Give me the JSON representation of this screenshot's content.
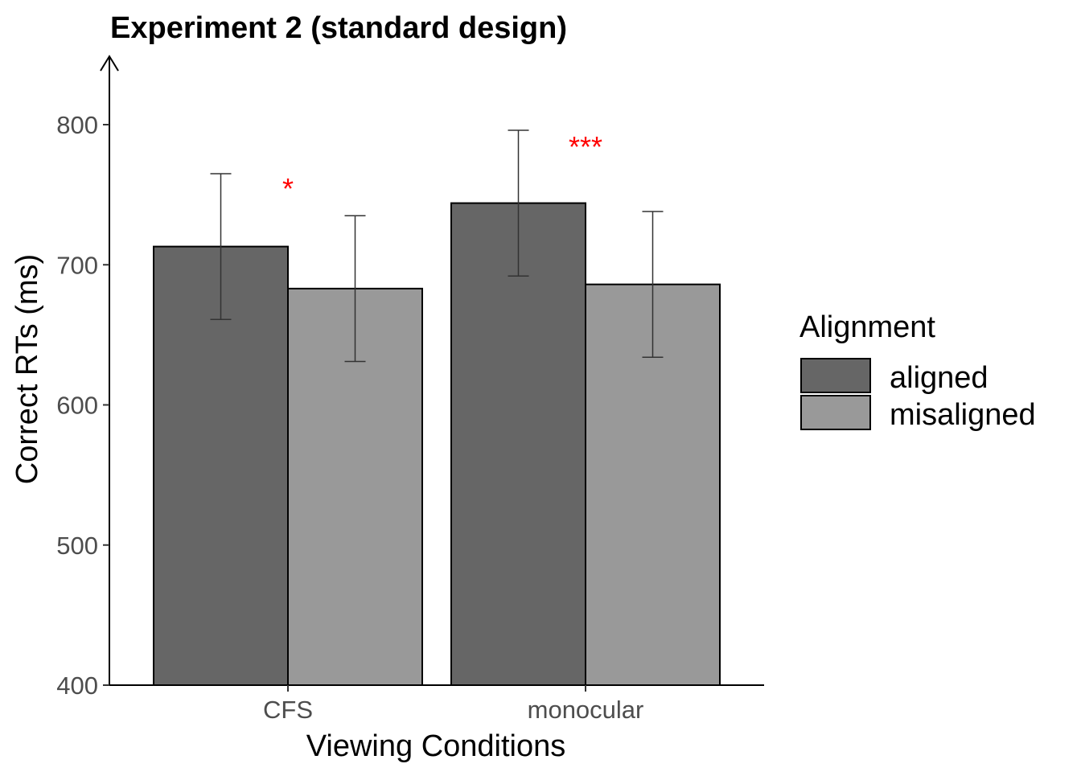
{
  "chart_data": {
    "type": "bar",
    "title": "Experiment 2 (standard design)",
    "xlabel": "Viewing Conditions",
    "ylabel": "Correct RTs (ms)",
    "categories": [
      "CFS",
      "monocular"
    ],
    "ylim": [
      400,
      840
    ],
    "yticks": [
      400,
      500,
      600,
      700,
      800
    ],
    "grid": false,
    "legend": {
      "title": "Alignment",
      "placement": "right"
    },
    "series": [
      {
        "name": "aligned",
        "color": "#666666",
        "values": [
          713,
          744
        ],
        "error_low": [
          661,
          692
        ],
        "error_high": [
          765,
          796
        ]
      },
      {
        "name": "misaligned",
        "color": "#999999",
        "values": [
          683,
          686
        ],
        "error_low": [
          631,
          634
        ],
        "error_high": [
          735,
          738
        ]
      }
    ],
    "annotations": [
      {
        "text": "*",
        "category": "CFS",
        "y": 762,
        "color": "#ff0000"
      },
      {
        "text": "***",
        "category": "monocular",
        "y": 792,
        "color": "#ff0000"
      }
    ]
  }
}
